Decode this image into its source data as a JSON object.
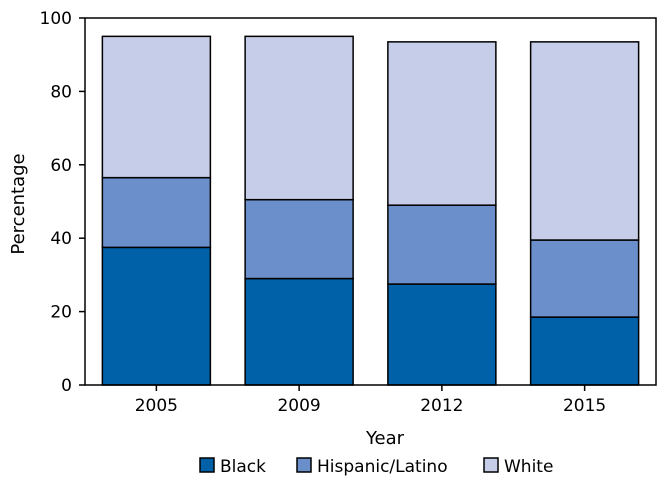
{
  "chart_data": {
    "type": "bar",
    "stacked": true,
    "categories": [
      "2005",
      "2009",
      "2012",
      "2015"
    ],
    "series": [
      {
        "name": "Black",
        "values": [
          37.5,
          29.0,
          27.5,
          18.5
        ],
        "color": "#0060a8"
      },
      {
        "name": "Hispanic/Latino",
        "values": [
          19.0,
          21.5,
          21.5,
          21.0
        ],
        "color": "#6a8fca"
      },
      {
        "name": "White",
        "values": [
          38.5,
          44.5,
          44.5,
          54.0
        ],
        "color": "#c5cde8"
      }
    ],
    "xlabel": "Year",
    "ylabel": "Percentage",
    "ylim": [
      0,
      100
    ],
    "yticks": [
      "0",
      "20",
      "40",
      "60",
      "80",
      "100"
    ],
    "grid": false,
    "legend_position": "bottom"
  }
}
